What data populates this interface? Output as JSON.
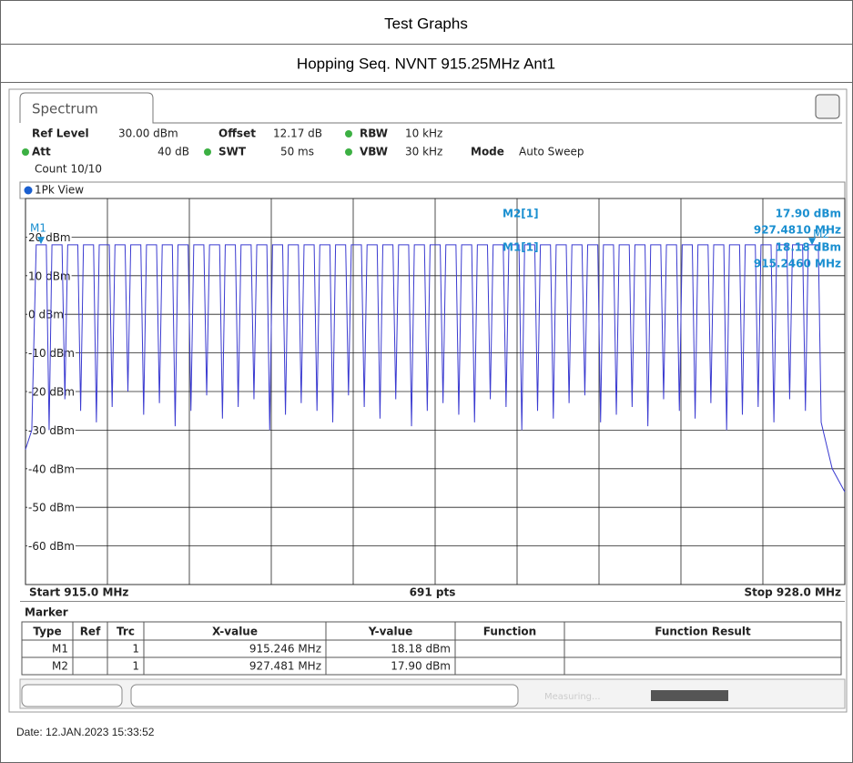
{
  "header": {
    "title": "Test Graphs",
    "subtitle": "Hopping Seq. NVNT 915.25MHz Ant1"
  },
  "screen": {
    "tab": "Spectrum",
    "settings": [
      [
        "Ref Level",
        "30.00 dBm",
        "Offset",
        "12.17 dB",
        "RBW",
        "10 kHz"
      ],
      [
        "Att",
        "40 dB",
        "SWT",
        "50 ms",
        "VBW",
        "30 kHz",
        "Mode",
        "Auto Sweep"
      ]
    ],
    "count": "Count 10/10",
    "status": "Measuring..."
  },
  "chart_data": {
    "type": "line",
    "xlim": [
      915,
      928
    ],
    "ylim": [
      -70,
      30
    ],
    "yticks": [
      {
        "value": 20,
        "label": "20 dBm"
      },
      {
        "value": 10,
        "label": "10 dBm"
      },
      {
        "value": 0,
        "label": "0 dBm"
      },
      {
        "value": -10,
        "label": "-10 dBm"
      },
      {
        "value": -20,
        "label": "-20 dBm"
      },
      {
        "value": -30,
        "label": "-30 dBm"
      },
      {
        "value": -40,
        "label": "-40 dBm"
      },
      {
        "value": -50,
        "label": "-50 dBm"
      },
      {
        "value": -60,
        "label": "-60 dBm"
      }
    ],
    "xticks": [
      915,
      916.3,
      917.6,
      918.9,
      920.2,
      921.5,
      922.8,
      924.1,
      925.4,
      926.7,
      928
    ],
    "grid": true,
    "start_label": "Start 915.0 MHz",
    "points_label": "691 pts",
    "stop_label": "Stop 928.0 MHz",
    "x": [
      915,
      915.1,
      915.17,
      915.33,
      915.375,
      915.42,
      915.58,
      915.625,
      915.67,
      915.83,
      915.875,
      915.92,
      916.08,
      916.125,
      916.17,
      916.33,
      916.375,
      916.42,
      916.58,
      916.625,
      916.67,
      916.83,
      916.875,
      916.92,
      917.08,
      917.125,
      917.17,
      917.33,
      917.375,
      917.42,
      917.58,
      917.625,
      917.67,
      917.83,
      917.875,
      917.92,
      918.08,
      918.125,
      918.17,
      918.33,
      918.375,
      918.42,
      918.58,
      918.625,
      918.67,
      918.83,
      918.875,
      918.92,
      919.08,
      919.125,
      919.17,
      919.33,
      919.375,
      919.42,
      919.58,
      919.625,
      919.67,
      919.83,
      919.875,
      919.92,
      920.08,
      920.125,
      920.17,
      920.33,
      920.375,
      920.42,
      920.58,
      920.625,
      920.67,
      920.83,
      920.875,
      920.92,
      921.08,
      921.125,
      921.17,
      921.33,
      921.375,
      921.42,
      921.58,
      921.625,
      921.67,
      921.83,
      921.875,
      921.92,
      922.08,
      922.125,
      922.17,
      922.33,
      922.375,
      922.42,
      922.58,
      922.625,
      922.67,
      922.83,
      922.875,
      922.92,
      923.08,
      923.125,
      923.17,
      923.33,
      923.375,
      923.42,
      923.58,
      923.625,
      923.67,
      923.83,
      923.875,
      923.92,
      924.08,
      924.125,
      924.17,
      924.33,
      924.375,
      924.42,
      924.58,
      924.625,
      924.67,
      924.83,
      924.875,
      924.92,
      925.08,
      925.125,
      925.17,
      925.33,
      925.375,
      925.42,
      925.58,
      925.625,
      925.67,
      925.83,
      925.875,
      925.92,
      926.08,
      926.125,
      926.17,
      926.33,
      926.375,
      926.42,
      926.58,
      926.625,
      926.67,
      926.83,
      926.875,
      926.92,
      927.08,
      927.125,
      927.17,
      927.33,
      927.375,
      927.42,
      927.58,
      927.625,
      927.8,
      928
    ],
    "series": [
      {
        "name": "1Pk View",
        "color": "#3a3ad0",
        "values": [
          -35,
          -30,
          18,
          18,
          -30,
          18,
          18,
          -22,
          18,
          18,
          -25,
          18,
          18,
          -28,
          18,
          18,
          -24,
          18,
          18,
          -20,
          18,
          18,
          -26,
          18,
          18,
          -23,
          18,
          18,
          -29,
          18,
          18,
          -25,
          18,
          18,
          -21,
          18,
          18,
          -27,
          18,
          18,
          -24,
          18,
          18,
          -22,
          18,
          18,
          -30,
          18,
          18,
          -26,
          18,
          18,
          -23,
          18,
          18,
          -25,
          18,
          18,
          -28,
          18,
          18,
          -21,
          18,
          18,
          -24,
          18,
          18,
          -27,
          18,
          18,
          -22,
          18,
          18,
          -29,
          18,
          18,
          -25,
          18,
          18,
          -23,
          18,
          18,
          -26,
          18,
          18,
          -28,
          18,
          18,
          -22,
          18,
          18,
          -24,
          18,
          18,
          -30,
          18,
          18,
          -25,
          18,
          18,
          -27,
          18,
          18,
          -23,
          18,
          18,
          -21,
          18,
          18,
          -28,
          18,
          18,
          -26,
          18,
          18,
          -24,
          18,
          18,
          -29,
          18,
          18,
          -22,
          18,
          18,
          -25,
          18,
          18,
          -27,
          18,
          18,
          -23,
          18,
          18,
          -30,
          18,
          18,
          -26,
          18,
          18,
          -24,
          18,
          18,
          -28,
          18,
          18,
          -22,
          18,
          18,
          -25,
          18,
          18,
          -28,
          -40,
          -46
        ]
      }
    ],
    "markers": [
      {
        "name": "M1",
        "x": 915.246,
        "y": 18.18,
        "readout_name": "M1[1]",
        "readout_y": "18.18 dBm",
        "readout_x": "915.2460 MHz"
      },
      {
        "name": "M2",
        "x": 927.481,
        "y": 17.9,
        "readout_name": "M2[1]",
        "readout_y": "17.90 dBm",
        "readout_x": "927.4810 MHz"
      }
    ]
  },
  "marker_table": {
    "title": "Marker",
    "columns": [
      "Type",
      "Ref",
      "Trc",
      "X-value",
      "Y-value",
      "Function",
      "Function Result"
    ],
    "rows": [
      {
        "type": "M1",
        "trc": "1",
        "x": "915.246 MHz",
        "y": "18.18 dBm"
      },
      {
        "type": "M2",
        "trc": "1",
        "x": "927.481 MHz",
        "y": "17.90 dBm"
      }
    ]
  },
  "footer": {
    "date": "Date: 12.JAN.2023  15:33:52"
  }
}
